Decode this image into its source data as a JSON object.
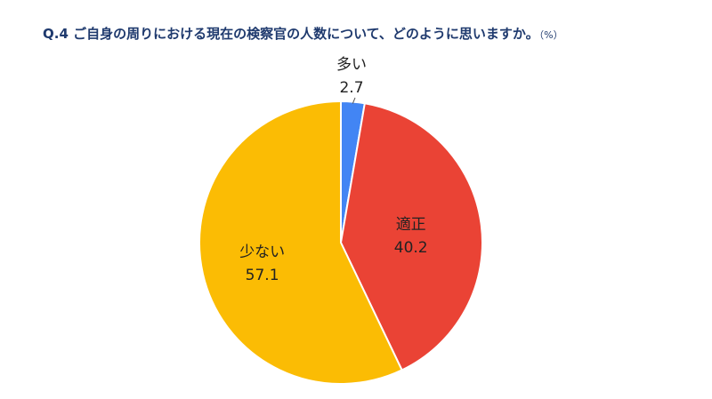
{
  "title": "Q.4 ご自身の周りにおける現在の検察官の人数について、どのように思いますか。",
  "unit": "（%）",
  "chart_data": {
    "type": "pie",
    "title": "Q.4 ご自身の周りにおける現在の検察官の人数について、どのように思いますか。",
    "unit": "%",
    "slices": [
      {
        "label": "多い",
        "value": 2.7,
        "color": "#4285f4"
      },
      {
        "label": "適正",
        "value": 40.2,
        "color": "#ea4335"
      },
      {
        "label": "少ない",
        "value": 57.1,
        "color": "#fbbc04"
      }
    ],
    "start": "top",
    "direction": "clockwise",
    "legend": "none",
    "data_labels": true
  }
}
